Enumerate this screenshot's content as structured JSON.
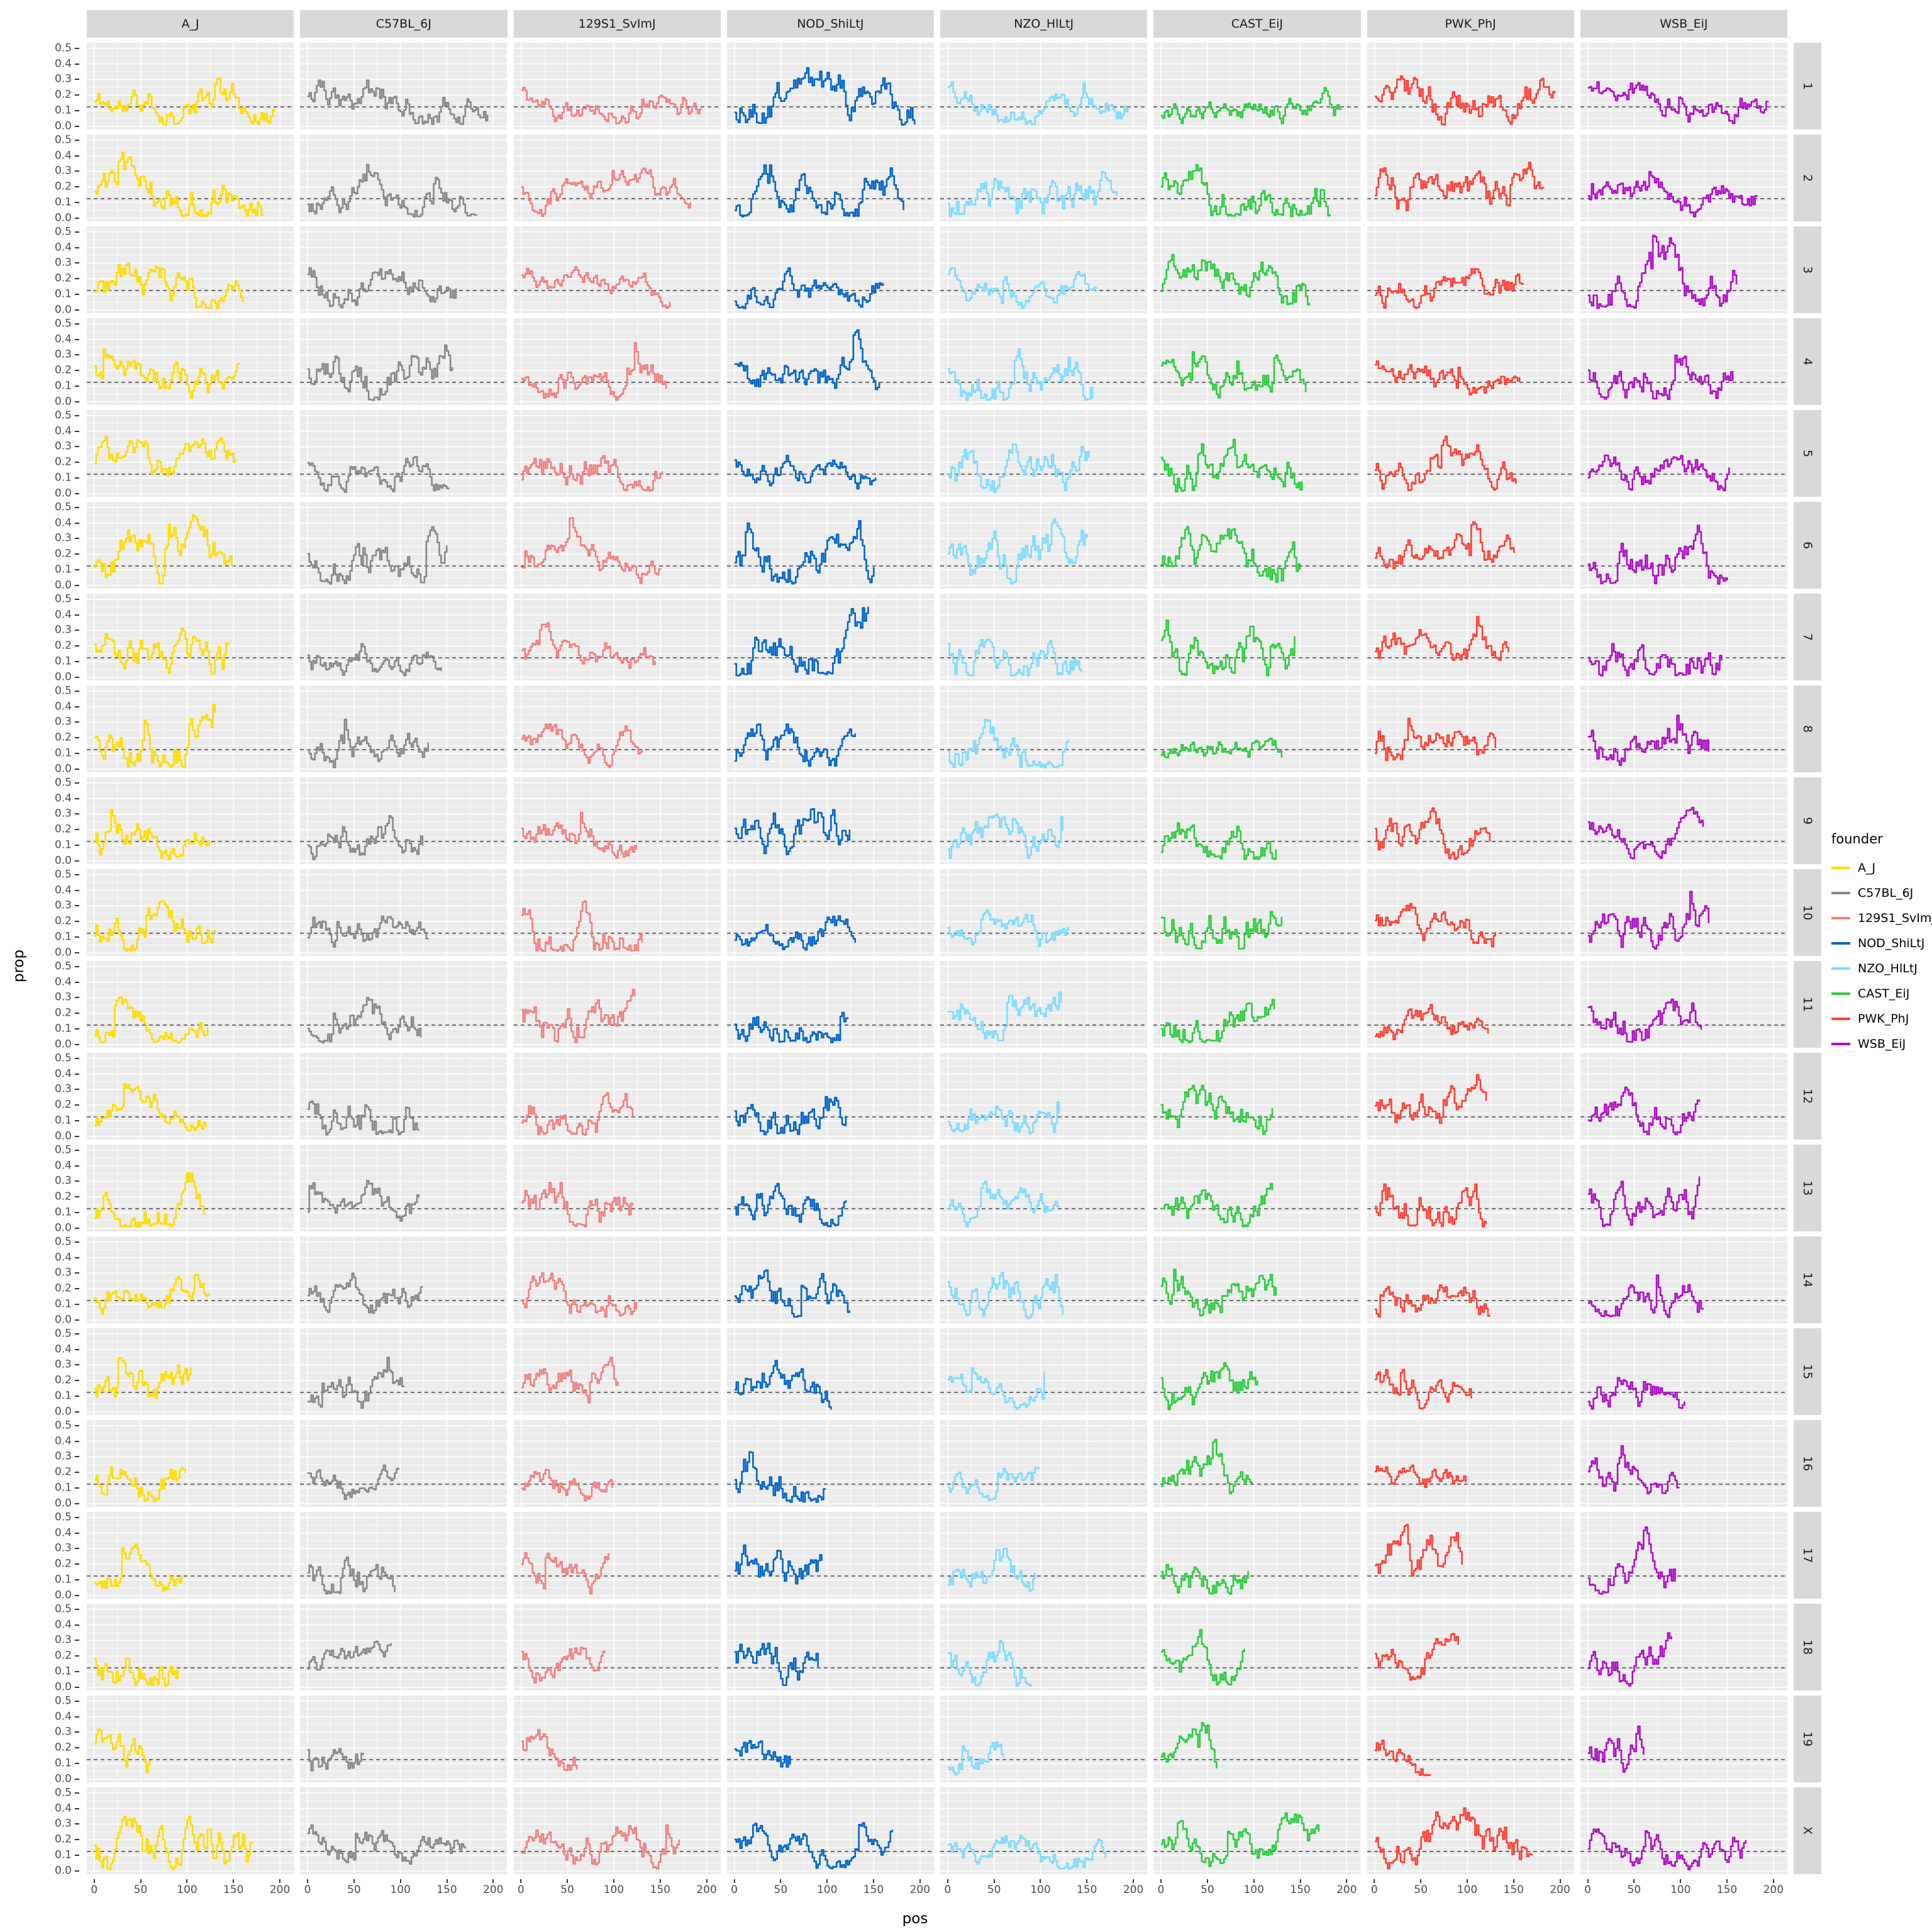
{
  "chart_data": {
    "type": "line",
    "title": "",
    "xlabel": "pos",
    "ylabel": "prop",
    "legend_title": "founder",
    "legend_position": "right",
    "grid": true,
    "x_ticks": [
      0,
      50,
      100,
      150,
      200
    ],
    "x_tick_labels": [
      "0",
      "50",
      "100",
      "150",
      "200"
    ],
    "y_ticks": [
      0.0,
      0.1,
      0.2,
      0.3,
      0.4,
      0.5
    ],
    "y_tick_labels": [
      "0.0",
      "0.1",
      "0.2",
      "0.3",
      "0.4",
      "0.5"
    ],
    "xlim": [
      0,
      200
    ],
    "ylim": [
      0,
      0.5
    ],
    "x_domain": [
      -8,
      215
    ],
    "y_domain": [
      -0.02,
      0.535
    ],
    "baseline_y": 0.125,
    "baseline_style": "dashed",
    "facet_col_field": "founder",
    "facet_row_field": "chromosome",
    "columns": [
      {
        "label": "A_J",
        "color": "#FFDC00"
      },
      {
        "label": "C57BL_6J",
        "color": "#888888"
      },
      {
        "label": "129S1_SvImJ",
        "color": "#F08080"
      },
      {
        "label": "NOD_ShiLtJ",
        "color": "#0064C9"
      },
      {
        "label": "NZO_HlLtJ",
        "color": "#7FDBFF"
      },
      {
        "label": "CAST_EiJ",
        "color": "#2ECC40"
      },
      {
        "label": "PWK_PhJ",
        "color": "#FF4136"
      },
      {
        "label": "WSB_EiJ",
        "color": "#B10DC9"
      }
    ],
    "rows": [
      {
        "label": "1",
        "x_max": 195
      },
      {
        "label": "2",
        "x_max": 182
      },
      {
        "label": "3",
        "x_max": 160
      },
      {
        "label": "4",
        "x_max": 157
      },
      {
        "label": "5",
        "x_max": 152
      },
      {
        "label": "6",
        "x_max": 150
      },
      {
        "label": "7",
        "x_max": 145
      },
      {
        "label": "8",
        "x_max": 130
      },
      {
        "label": "9",
        "x_max": 124
      },
      {
        "label": "10",
        "x_max": 131
      },
      {
        "label": "11",
        "x_max": 122
      },
      {
        "label": "12",
        "x_max": 120
      },
      {
        "label": "13",
        "x_max": 120
      },
      {
        "label": "14",
        "x_max": 125
      },
      {
        "label": "15",
        "x_max": 104
      },
      {
        "label": "16",
        "x_max": 98
      },
      {
        "label": "17",
        "x_max": 95
      },
      {
        "label": "18",
        "x_max": 91
      },
      {
        "label": "19",
        "x_max": 61
      },
      {
        "label": "X",
        "x_max": 171
      }
    ],
    "series_synthesis": {
      "seed": 11,
      "x_step": 2,
      "y_mean": 0.125,
      "sd": 0.06,
      "reversion": 0.12,
      "spike_prob": 0.02,
      "spike_size": 0.16,
      "y_min": 0.01,
      "y_max": 0.5
    }
  },
  "style": {
    "panel_bg": "#EBEBEB",
    "strip_bg": "#D9D9D9",
    "grid_major": "#FFFFFF",
    "grid_minor": "#FFFFFF",
    "axis_text": "#4D4D4D",
    "strip_text": "#1A1A1A",
    "baseline_color": "#333333"
  }
}
